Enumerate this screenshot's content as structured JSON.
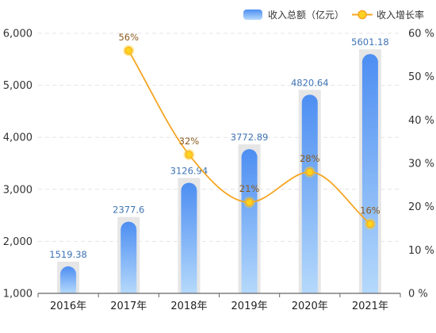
{
  "chart_data": {
    "type": "bar",
    "categories": [
      "2016年",
      "2017年",
      "2018年",
      "2019年",
      "2020年",
      "2021年"
    ],
    "series": [
      {
        "name": "收入总额（亿元）",
        "type": "bar",
        "axis": "left",
        "values": [
          1519.38,
          2377.6,
          3126.94,
          3772.89,
          4820.64,
          5601.18
        ],
        "labels": [
          "1519.38",
          "2377.6",
          "3126.94",
          "3772.89",
          "4820.64",
          "5601.18"
        ]
      },
      {
        "name": "收入增长率",
        "type": "line",
        "axis": "right",
        "values": [
          null,
          56,
          32,
          21,
          28,
          16
        ],
        "labels": [
          "",
          "56%",
          "32%",
          "21%",
          "28%",
          "16%"
        ]
      }
    ],
    "y_left": {
      "lim": [
        1000,
        6000
      ],
      "ticks": [
        1000,
        2000,
        3000,
        4000,
        5000,
        6000
      ],
      "tick_labels": [
        "1,000",
        "2,000",
        "3,000",
        "4,000",
        "5,000",
        "6,000"
      ]
    },
    "y_right": {
      "lim": [
        0,
        60
      ],
      "ticks": [
        0,
        10,
        20,
        30,
        40,
        50,
        60
      ],
      "tick_labels": [
        "0 %",
        "10 %",
        "20 %",
        "30 %",
        "40 %",
        "50 %",
        "60 %"
      ]
    },
    "grid": true,
    "legend_position": "top-right",
    "colors": {
      "bar_top": "#4d8ef2",
      "bar_bottom": "#b5d9fb",
      "bar_shadow": "#e6e6e6",
      "line": "#f5a623",
      "marker": "#ffd21f",
      "bar_label": "#3f74b4",
      "line_label": "#8a5a1e",
      "grid": "#e4e4e4"
    }
  }
}
